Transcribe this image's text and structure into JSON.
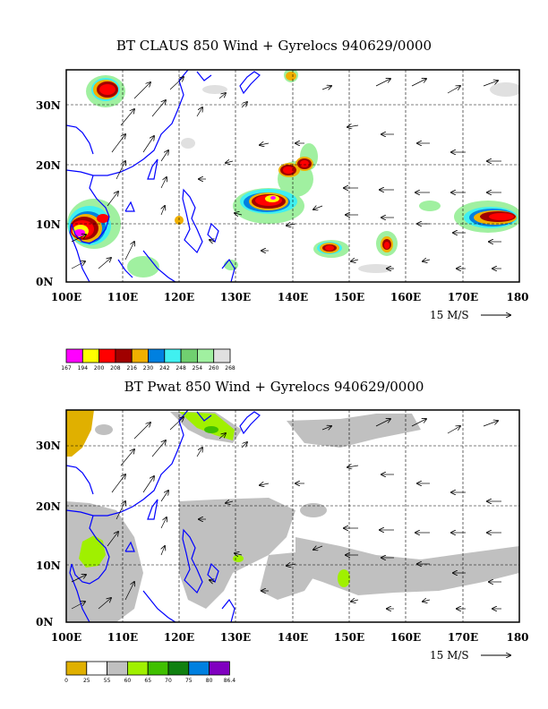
{
  "panels": [
    {
      "title": "BT CLAUS 850 Wind + Gyrelocs 940629/0000",
      "lon_ticks": [
        "100E",
        "110E",
        "120E",
        "130E",
        "140E",
        "150E",
        "160E",
        "170E",
        "180"
      ],
      "lat_ticks": [
        "0N",
        "10N",
        "20N",
        "30N"
      ],
      "reference_vector": "15 M/S",
      "colorbar": {
        "labels": [
          "167",
          "194",
          "200",
          "208",
          "216",
          "230",
          "242",
          "248",
          "254",
          "260",
          "268"
        ],
        "colors": [
          "#ff00ff",
          "#ffff00",
          "#ff0000",
          "#a00000",
          "#f0b000",
          "#0080e0",
          "#40f0f0",
          "#70d070",
          "#a0f0a0",
          "#e0e0e0"
        ]
      }
    },
    {
      "title": "BT Pwat 850 Wind + Gyrelocs 940629/0000",
      "lon_ticks": [
        "100E",
        "110E",
        "120E",
        "130E",
        "140E",
        "150E",
        "160E",
        "170E",
        "180"
      ],
      "lat_ticks": [
        "0N",
        "10N",
        "20N",
        "30N"
      ],
      "reference_vector": "15 M/S",
      "colorbar": {
        "labels": [
          "0",
          "25",
          "55",
          "60",
          "65",
          "70",
          "75",
          "80",
          "86.4"
        ],
        "colors": [
          "#e0b000",
          "#ffffff",
          "#c0c0c0",
          "#a0f000",
          "#40c000",
          "#108010",
          "#0080e0",
          "#8000c0"
        ]
      }
    }
  ],
  "map_style": {
    "coastline_color": "#0000ff",
    "grid_style": "dashed",
    "frame_color": "#000000"
  }
}
